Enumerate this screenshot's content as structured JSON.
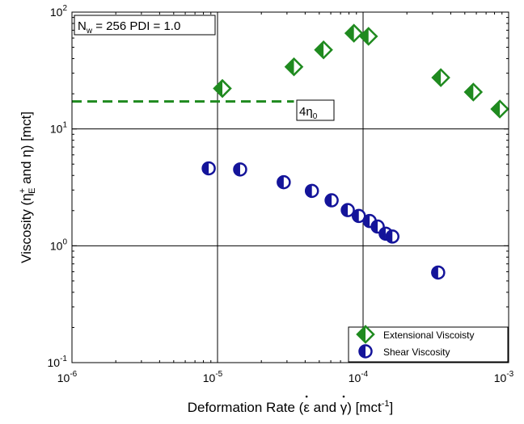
{
  "chart_data": {
    "type": "scatter",
    "x_scale": "log",
    "y_scale": "log",
    "xlim": [
      1e-06,
      0.001
    ],
    "ylim": [
      0.1,
      100
    ],
    "grid": "decades",
    "x_ticks": [
      {
        "value": 1e-06,
        "base": "10",
        "exp": "-6"
      },
      {
        "value": 1e-05,
        "base": "10",
        "exp": "-5"
      },
      {
        "value": 0.0001,
        "base": "10",
        "exp": "-4"
      },
      {
        "value": 0.001,
        "base": "10",
        "exp": "-3"
      }
    ],
    "y_ticks": [
      {
        "value": 0.1,
        "base": "10",
        "exp": "-1"
      },
      {
        "value": 1,
        "base": "10",
        "exp": "0"
      },
      {
        "value": 10,
        "base": "10",
        "exp": "1"
      },
      {
        "value": 100,
        "base": "10",
        "exp": "2"
      }
    ],
    "xlabel": {
      "prefix": "Deformation Rate (",
      "eps": "ε",
      "mid": " and ",
      "gamma": "γ",
      "suffix1": ") [mct",
      "sup": "-1",
      "suffix2": "]"
    },
    "ylabel": {
      "prefix": "Viscosity (η",
      "sup": "+",
      "sub": "E",
      "mid": " and η) [mct]"
    },
    "annotation": {
      "n": "N",
      "sub": "w",
      "rest": " = 256 PDI = 1.0"
    },
    "reference_line": {
      "value": 17.2,
      "x_start": 1e-06,
      "x_end": 3.35e-05,
      "label_main": "4η",
      "label_sub": "0",
      "color": "#1f8a1f"
    },
    "legend_position": "bottom-right",
    "series": [
      {
        "name": "Extensional Viscoisty",
        "marker": "half-filled-diamond",
        "color": "#1f8a1f",
        "points": [
          {
            "x": 1.08e-05,
            "y": 22.2
          },
          {
            "x": 3.35e-05,
            "y": 34
          },
          {
            "x": 5.35e-05,
            "y": 47.5
          },
          {
            "x": 8.65e-05,
            "y": 66
          },
          {
            "x": 0.000109,
            "y": 62
          },
          {
            "x": 0.000342,
            "y": 27.5
          },
          {
            "x": 0.000572,
            "y": 20.7
          },
          {
            "x": 0.00087,
            "y": 14.8
          }
        ]
      },
      {
        "name": "Shear Viscosity",
        "marker": "half-filled-circle",
        "color": "#14149a",
        "points": [
          {
            "x": 8.7e-06,
            "y": 4.6
          },
          {
            "x": 1.43e-05,
            "y": 4.5
          },
          {
            "x": 2.85e-05,
            "y": 3.5
          },
          {
            "x": 4.45e-05,
            "y": 2.95
          },
          {
            "x": 6.08e-05,
            "y": 2.45
          },
          {
            "x": 7.85e-05,
            "y": 2.02
          },
          {
            "x": 9.35e-05,
            "y": 1.8
          },
          {
            "x": 0.000111,
            "y": 1.63
          },
          {
            "x": 0.000126,
            "y": 1.46
          },
          {
            "x": 0.000143,
            "y": 1.27
          },
          {
            "x": 0.000159,
            "y": 1.2
          },
          {
            "x": 0.000328,
            "y": 0.59
          }
        ]
      }
    ]
  }
}
